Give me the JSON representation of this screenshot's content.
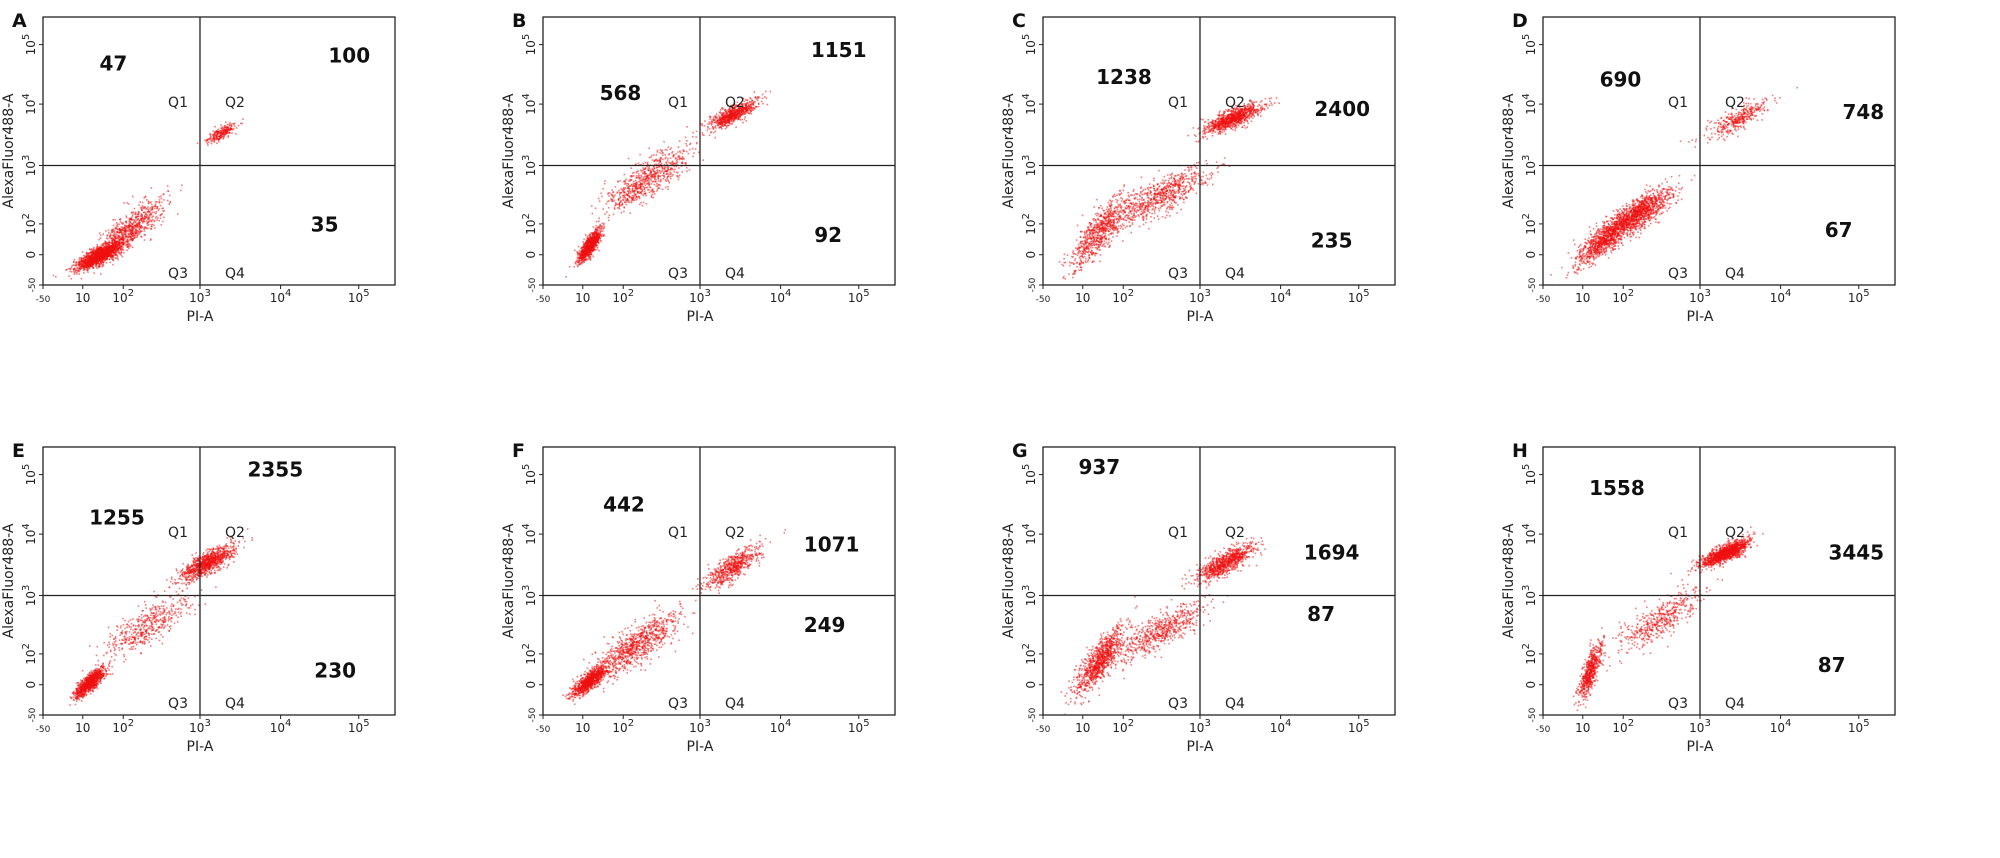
{
  "chart_data": [
    {
      "type": "scatter",
      "panel": "A",
      "xlabel": "PI-A",
      "ylabel": "AlexaFluor488-A",
      "x_ticks": [
        "-50",
        "10",
        "10^2",
        "10^3",
        "10^4",
        "10^5"
      ],
      "y_ticks": [
        "-50",
        "0",
        "10^2",
        "10^3",
        "10^4",
        "10^5"
      ],
      "quadrants": [
        "Q1",
        "Q2",
        "Q3",
        "Q4"
      ],
      "counts": {
        "Q1": "47",
        "Q2": "100",
        "Q4": "35"
      },
      "clusters": [
        {
          "x": 25,
          "y": 10,
          "spread": [
            0.25,
            0.2
          ],
          "weight": 0.62
        },
        {
          "x": 120,
          "y": 70,
          "spread": [
            0.35,
            0.4
          ],
          "weight": 0.28
        },
        {
          "x": 1800,
          "y": 3500,
          "spread": [
            0.15,
            0.14
          ],
          "weight": 0.1
        }
      ],
      "dot_color": "#ee1111"
    },
    {
      "type": "scatter",
      "panel": "B",
      "xlabel": "PI-A",
      "ylabel": "AlexaFluor488-A",
      "x_ticks": [
        "-50",
        "10",
        "10^2",
        "10^3",
        "10^4",
        "10^5"
      ],
      "y_ticks": [
        "-50",
        "0",
        "10^2",
        "10^3",
        "10^4",
        "10^5"
      ],
      "quadrants": [
        "Q1",
        "Q2",
        "Q3",
        "Q4"
      ],
      "counts": {
        "Q1": "568",
        "Q2": "1151",
        "Q4": "92"
      },
      "clusters": [
        {
          "x": 14,
          "y": 20,
          "spread": [
            0.12,
            0.22
          ],
          "weight": 0.4
        },
        {
          "x": 200,
          "y": 600,
          "spread": [
            0.45,
            0.45
          ],
          "weight": 0.3
        },
        {
          "x": 2500,
          "y": 7000,
          "spread": [
            0.25,
            0.2
          ],
          "weight": 0.3
        }
      ],
      "dot_color": "#ee1111"
    },
    {
      "type": "scatter",
      "panel": "C",
      "xlabel": "PI-A",
      "ylabel": "AlexaFluor488-A",
      "x_ticks": [
        "-50",
        "10",
        "10^2",
        "10^3",
        "10^4",
        "10^5"
      ],
      "y_ticks": [
        "-50",
        "0",
        "10^2",
        "10^3",
        "10^4",
        "10^5"
      ],
      "quadrants": [
        "Q1",
        "Q2",
        "Q3",
        "Q4"
      ],
      "counts": {
        "Q1": "1238",
        "Q2": "2400",
        "Q4": "235"
      },
      "clusters": [
        {
          "x": 25,
          "y": 60,
          "spread": [
            0.3,
            0.5
          ],
          "weight": 0.3
        },
        {
          "x": 300,
          "y": 300,
          "spread": [
            0.5,
            0.4
          ],
          "weight": 0.3
        },
        {
          "x": 2500,
          "y": 6000,
          "spread": [
            0.3,
            0.2
          ],
          "weight": 0.4
        }
      ],
      "dot_color": "#ee1111"
    },
    {
      "type": "scatter",
      "panel": "D",
      "xlabel": "PI-A",
      "ylabel": "AlexaFluor488-A",
      "x_ticks": [
        "-50",
        "10",
        "10^2",
        "10^3",
        "10^4",
        "10^5"
      ],
      "y_ticks": [
        "-50",
        "0",
        "10^2",
        "10^3",
        "10^4",
        "10^5"
      ],
      "quadrants": [
        "Q1",
        "Q2",
        "Q3",
        "Q4"
      ],
      "counts": {
        "Q1": "690",
        "Q2": "748",
        "Q4": "67"
      },
      "clusters": [
        {
          "x": 30,
          "y": 30,
          "spread": [
            0.3,
            0.35
          ],
          "weight": 0.35
        },
        {
          "x": 150,
          "y": 150,
          "spread": [
            0.35,
            0.35
          ],
          "weight": 0.5
        },
        {
          "x": 3000,
          "y": 6000,
          "spread": [
            0.3,
            0.25
          ],
          "weight": 0.15
        }
      ],
      "dot_color": "#ee1111"
    },
    {
      "type": "scatter",
      "panel": "E",
      "xlabel": "PI-A",
      "ylabel": "AlexaFluor488-A",
      "x_ticks": [
        "-50",
        "10",
        "10^2",
        "10^3",
        "10^4",
        "10^5"
      ],
      "y_ticks": [
        "-50",
        "0",
        "10^2",
        "10^3",
        "10^4",
        "10^5"
      ],
      "quadrants": [
        "Q1",
        "Q2",
        "Q3",
        "Q4"
      ],
      "counts": {
        "Q1": "1255",
        "Q2": "2355",
        "Q4": "230"
      },
      "clusters": [
        {
          "x": 14,
          "y": 12,
          "spread": [
            0.15,
            0.2
          ],
          "weight": 0.4
        },
        {
          "x": 200,
          "y": 300,
          "spread": [
            0.45,
            0.45
          ],
          "weight": 0.2
        },
        {
          "x": 1200,
          "y": 3500,
          "spread": [
            0.3,
            0.25
          ],
          "weight": 0.4
        }
      ],
      "dot_color": "#ee1111"
    },
    {
      "type": "scatter",
      "panel": "F",
      "xlabel": "PI-A",
      "ylabel": "AlexaFluor488-A",
      "x_ticks": [
        "-50",
        "10",
        "10^2",
        "10^3",
        "10^4",
        "10^5"
      ],
      "y_ticks": [
        "-50",
        "0",
        "10^2",
        "10^3",
        "10^4",
        "10^5"
      ],
      "quadrants": [
        "Q1",
        "Q2",
        "Q3",
        "Q4"
      ],
      "counts": {
        "Q1": "442",
        "Q2": "1071",
        "Q4": "249"
      },
      "clusters": [
        {
          "x": 14,
          "y": 14,
          "spread": [
            0.18,
            0.2
          ],
          "weight": 0.4
        },
        {
          "x": 150,
          "y": 150,
          "spread": [
            0.45,
            0.45
          ],
          "weight": 0.35
        },
        {
          "x": 2500,
          "y": 3000,
          "spread": [
            0.3,
            0.3
          ],
          "weight": 0.25
        }
      ],
      "dot_color": "#ee1111"
    },
    {
      "type": "scatter",
      "panel": "G",
      "xlabel": "PI-A",
      "ylabel": "AlexaFluor488-A",
      "x_ticks": [
        "-50",
        "10",
        "10^2",
        "10^3",
        "10^4",
        "10^5"
      ],
      "y_ticks": [
        "-50",
        "0",
        "10^2",
        "10^3",
        "10^4",
        "10^5"
      ],
      "quadrants": [
        "Q1",
        "Q2",
        "Q3",
        "Q4"
      ],
      "counts": {
        "Q1": "937",
        "Q2": "1694",
        "Q4": "87"
      },
      "clusters": [
        {
          "x": 25,
          "y": 60,
          "spread": [
            0.25,
            0.45
          ],
          "weight": 0.4
        },
        {
          "x": 300,
          "y": 250,
          "spread": [
            0.45,
            0.4
          ],
          "weight": 0.25
        },
        {
          "x": 2000,
          "y": 3500,
          "spread": [
            0.3,
            0.25
          ],
          "weight": 0.35
        }
      ],
      "dot_color": "#ee1111"
    },
    {
      "type": "scatter",
      "panel": "H",
      "xlabel": "PI-A",
      "ylabel": "AlexaFluor488-A",
      "x_ticks": [
        "-50",
        "10",
        "10^2",
        "10^3",
        "10^4",
        "10^5"
      ],
      "y_ticks": [
        "-50",
        "0",
        "10^2",
        "10^3",
        "10^4",
        "10^5"
      ],
      "quadrants": [
        "Q1",
        "Q2",
        "Q3",
        "Q4"
      ],
      "counts": {
        "Q1": "1558",
        "Q2": "3445",
        "Q4": "87"
      },
      "clusters": [
        {
          "x": 15,
          "y": 30,
          "spread": [
            0.12,
            0.4
          ],
          "weight": 0.25
        },
        {
          "x": 300,
          "y": 400,
          "spread": [
            0.45,
            0.45
          ],
          "weight": 0.2
        },
        {
          "x": 2000,
          "y": 5000,
          "spread": [
            0.25,
            0.18
          ],
          "weight": 0.55
        }
      ],
      "dot_color": "#ee1111"
    }
  ]
}
